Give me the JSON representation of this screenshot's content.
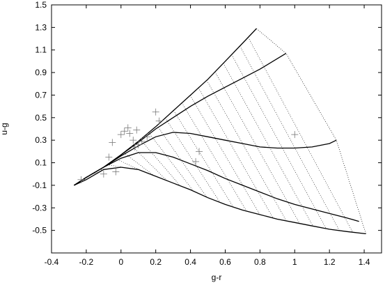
{
  "chart_data": {
    "type": "line",
    "title": "",
    "xlabel": "g-r",
    "ylabel": "u-g",
    "xlim": [
      -0.4,
      1.5
    ],
    "ylim": [
      -0.7,
      1.5
    ],
    "xticks": [
      "-0.4",
      "-0.2",
      "0",
      "0.2",
      "0.4",
      "0.6",
      "0.8",
      "1",
      "1.2",
      "1.4"
    ],
    "xtick_values": [
      -0.4,
      -0.2,
      0,
      0.2,
      0.4,
      0.6,
      0.8,
      1.0,
      1.2,
      1.4
    ],
    "yticks": [
      "1.5",
      "1.3",
      "1.1",
      "0.9",
      "0.7",
      "0.5",
      "0.3",
      "0.1",
      "-0.1",
      "-0.3",
      "-0.5"
    ],
    "ytick_values": [
      1.5,
      1.3,
      1.1,
      0.9,
      0.7,
      0.5,
      0.3,
      0.1,
      -0.1,
      -0.3,
      -0.5
    ],
    "grid": false,
    "legend": "none",
    "series": [
      {
        "style": "solid",
        "x": [
          -0.27,
          -0.2,
          -0.1,
          0.0,
          0.1,
          0.2,
          0.3,
          0.4,
          0.5,
          0.6,
          0.7,
          0.78
        ],
        "y": [
          -0.1,
          -0.03,
          0.06,
          0.17,
          0.29,
          0.42,
          0.56,
          0.7,
          0.84,
          1.0,
          1.16,
          1.29
        ]
      },
      {
        "style": "solid",
        "x": [
          -0.27,
          -0.2,
          -0.1,
          0.0,
          0.1,
          0.2,
          0.3,
          0.4,
          0.5,
          0.6,
          0.7,
          0.8,
          0.95
        ],
        "y": [
          -0.1,
          -0.03,
          0.06,
          0.17,
          0.28,
          0.4,
          0.5,
          0.6,
          0.69,
          0.77,
          0.85,
          0.93,
          1.07
        ]
      },
      {
        "style": "solid",
        "x": [
          -0.27,
          -0.2,
          -0.1,
          0.0,
          0.1,
          0.2,
          0.3,
          0.4,
          0.5,
          0.6,
          0.7,
          0.8,
          0.9,
          1.0,
          1.1,
          1.2,
          1.24
        ],
        "y": [
          -0.1,
          -0.03,
          0.06,
          0.16,
          0.25,
          0.33,
          0.37,
          0.36,
          0.33,
          0.3,
          0.27,
          0.24,
          0.23,
          0.23,
          0.24,
          0.27,
          0.3
        ]
      },
      {
        "style": "solid",
        "x": [
          -0.27,
          -0.2,
          -0.1,
          0.0,
          0.1,
          0.2,
          0.3,
          0.4,
          0.5,
          0.6,
          0.7,
          0.8,
          0.9,
          1.0,
          1.1,
          1.2,
          1.3,
          1.37
        ],
        "y": [
          -0.1,
          -0.03,
          0.06,
          0.14,
          0.19,
          0.19,
          0.15,
          0.09,
          0.03,
          -0.04,
          -0.1,
          -0.16,
          -0.22,
          -0.27,
          -0.31,
          -0.35,
          -0.39,
          -0.42
        ]
      },
      {
        "style": "solid",
        "x": [
          -0.27,
          -0.2,
          -0.1,
          0.0,
          0.1,
          0.2,
          0.3,
          0.4,
          0.5,
          0.6,
          0.7,
          0.8,
          0.9,
          1.0,
          1.1,
          1.2,
          1.3,
          1.41
        ],
        "y": [
          -0.1,
          -0.05,
          0.04,
          0.06,
          0.04,
          -0.02,
          -0.08,
          -0.14,
          -0.21,
          -0.27,
          -0.32,
          -0.36,
          -0.4,
          -0.43,
          -0.46,
          -0.49,
          -0.51,
          -0.53
        ]
      },
      {
        "style": "dotted",
        "x": [
          0.78,
          0.95,
          1.24,
          1.41
        ],
        "y": [
          1.29,
          1.07,
          0.3,
          -0.53
        ]
      }
    ],
    "scatter": {
      "marker": "+",
      "x": [
        -0.23,
        -0.1,
        -0.07,
        -0.03,
        0.0,
        0.02,
        0.04,
        0.05,
        0.07,
        0.08,
        0.1,
        0.12,
        0.15,
        0.2,
        0.22,
        0.43,
        0.45,
        1.0,
        -0.05,
        0.09
      ],
      "y": [
        -0.05,
        0.0,
        0.15,
        0.02,
        0.35,
        0.38,
        0.41,
        0.36,
        0.3,
        0.24,
        0.26,
        0.29,
        0.33,
        0.55,
        0.47,
        0.11,
        0.2,
        0.35,
        0.28,
        0.39
      ]
    }
  }
}
